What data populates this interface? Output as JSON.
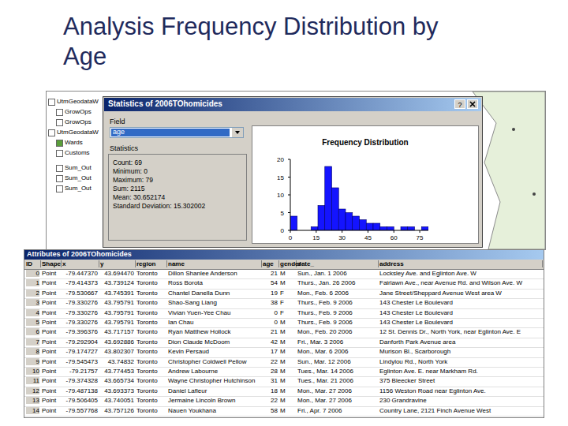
{
  "slide": {
    "title_lines": [
      "Analysis Frequency Distribution by",
      "Age"
    ]
  },
  "tree": {
    "items": [
      "UtmGeodataW",
      "GrowOps",
      "GrowOps",
      "UtmGeodataW",
      "Wards",
      "Customs",
      "Sum_Out",
      "Sum_Out",
      "Sum_Out"
    ]
  },
  "dialog": {
    "title": "Statistics of 2006TOhomicides",
    "help_button": "?",
    "field_label": "Field",
    "field_value": "age",
    "statistics_label": "Statistics",
    "stats": [
      {
        "label": "Count:",
        "value": 69
      },
      {
        "label": "Minimum:",
        "value": 0
      },
      {
        "label": "Maximum:",
        "value": 79
      },
      {
        "label": "Sum:",
        "value": 2115
      },
      {
        "label": "Mean:",
        "value": 30.652174
      },
      {
        "label": "Standard Deviation:",
        "value": 15.302002
      }
    ]
  },
  "chart_data": {
    "type": "histogram",
    "title": "Frequency Distribution",
    "bins": [
      0,
      4,
      8,
      12,
      16,
      20,
      24,
      28,
      32,
      36,
      40,
      44,
      48,
      52,
      56,
      60,
      64,
      68,
      72,
      76,
      80
    ],
    "counts": [
      4,
      0,
      0,
      1,
      7,
      18,
      12,
      6,
      5,
      4,
      3,
      2,
      2,
      1,
      1,
      0,
      1,
      1,
      0,
      1
    ],
    "color": "#1414ff",
    "xlim": [
      0,
      80
    ],
    "xticks": [
      0,
      15,
      30,
      45,
      60,
      75
    ],
    "ylim": [
      0,
      20
    ],
    "yticks": [
      0,
      5,
      10,
      15,
      20
    ],
    "grid": false
  },
  "table": {
    "window_title": "Attributes of 2006TOhomicides",
    "columns": [
      "ID",
      "Shape",
      "x",
      "y",
      "region",
      "name",
      "age",
      "gender",
      "date_",
      "address"
    ],
    "rows": [
      [
        0,
        "Point",
        "-79.447370",
        "43.694470",
        "Toronto",
        "Dillon Shanlee Anderson",
        21,
        "M",
        "Sun., Jan. 1 2006",
        "Locksley Ave. and Eglinton Ave. W"
      ],
      [
        1,
        "Point",
        "-79.414373",
        "43.739124",
        "Toronto",
        "Ross Borota",
        54,
        "M",
        "Thurs., Jan. 26 2006",
        "Fairlawn Ave., near Avenue Rd. and Wilson Ave. W"
      ],
      [
        2,
        "Point",
        "-79.530667",
        "43.745391",
        "Toronto",
        "Chantel Danella Dunn",
        19,
        "F",
        "Mon., Feb. 6 2006",
        "Jane Street/Sheppard Avenue West area W"
      ],
      [
        3,
        "Point",
        "-79.330276",
        "43.795791",
        "Toronto",
        "Shao-Sang Liang",
        38,
        "F",
        "Thurs., Feb. 9 2006",
        "143 Chester Le Boulevard"
      ],
      [
        4,
        "Point",
        "-79.330276",
        "43.795791",
        "Toronto",
        "Vivian Yuen-Yee Chau",
        0,
        "F",
        "Thurs., Feb. 9 2006",
        "143 Chester Le Boulevard"
      ],
      [
        5,
        "Point",
        "-79.330276",
        "43.795791",
        "Toronto",
        "Ian Chau",
        0,
        "M",
        "Thurs., Feb. 9 2006",
        "143 Chester Le Boulevard"
      ],
      [
        6,
        "Point",
        "-79.396376",
        "43.717157",
        "Toronto",
        "Ryan Matthew Hollock",
        21,
        "M",
        "Mon., Feb. 20 2006",
        "12 St. Dennis Dr., North York, near Eglinton Ave. E"
      ],
      [
        7,
        "Point",
        "-79.292904",
        "43.692886",
        "Toronto",
        "Dion Claude McDoom",
        42,
        "M",
        "Fri., Mar. 3 2006",
        "Danforth Park Avenue area"
      ],
      [
        8,
        "Point",
        "-79.174727",
        "43.802307",
        "Toronto",
        "Kevin Persaud",
        17,
        "M",
        "Mon., Mar. 6 2006",
        "Murison Bl., Scarborough"
      ],
      [
        9,
        "Point",
        "-79.545473",
        "43.74832",
        "Toronto",
        "Christopher Coldwell Pellow",
        22,
        "M",
        "Sun., Mar. 12 2006",
        "Lindylou Rd., North York"
      ],
      [
        10,
        "Point",
        "-79.21757",
        "43.774453",
        "Toronto",
        "Andrew Labourne",
        28,
        "M",
        "Tues., Mar. 14 2006",
        "Eglinton Ave. E. near Markham Rd."
      ],
      [
        11,
        "Point",
        "-79.374328",
        "43.665734",
        "Toronto",
        "Wayne Christopher Hutchinson",
        31,
        "M",
        "Tues., Mar. 21 2006",
        "375 Bleecker Street"
      ],
      [
        12,
        "Point",
        "-79.487138",
        "43.693373",
        "Toronto",
        "Daniel Lafleur",
        18,
        "M",
        "Mon., Mar. 27 2006",
        "1156 Weston Road near Eglinton Ave."
      ],
      [
        13,
        "Point",
        "-79.506405",
        "43.740051",
        "Toronto",
        "Jermaine Lincoln Brown",
        22,
        "M",
        "Mon., Mar. 27 2006",
        "230 Grandravine"
      ],
      [
        14,
        "Point",
        "-79.557768",
        "43.757126",
        "Toronto",
        "Nauen Youkhana",
        58,
        "M",
        "Fri., Apr. 7 2006",
        "Country Lane, 2121 Finch Avenue West"
      ]
    ]
  }
}
